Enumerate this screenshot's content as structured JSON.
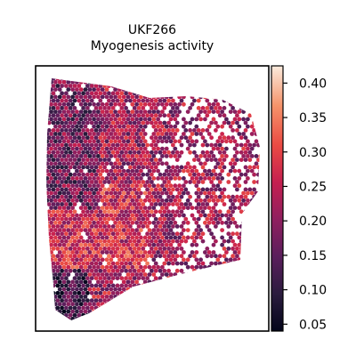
{
  "chart_data": {
    "type": "scatter",
    "title_line1": "UKF266",
    "title_line2": "Myogenesis activity",
    "xlabel": "",
    "ylabel": "",
    "axes_ticks_visible": false,
    "grid": false,
    "legend": "colorbar-right",
    "colormap": "rocket",
    "color_range": [
      0.04,
      0.425
    ],
    "colorbar_ticks": [
      0.05,
      0.1,
      0.15,
      0.2,
      0.25,
      0.3,
      0.35,
      0.4
    ],
    "colorbar_tick_labels": [
      "0.05",
      "0.10",
      "0.15",
      "0.20",
      "0.25",
      "0.30",
      "0.35",
      "0.40"
    ],
    "colors": {
      "low": "#03051a",
      "mid": "#cb1b4f",
      "high": "#faebdd",
      "frame": "#000000"
    }
  }
}
